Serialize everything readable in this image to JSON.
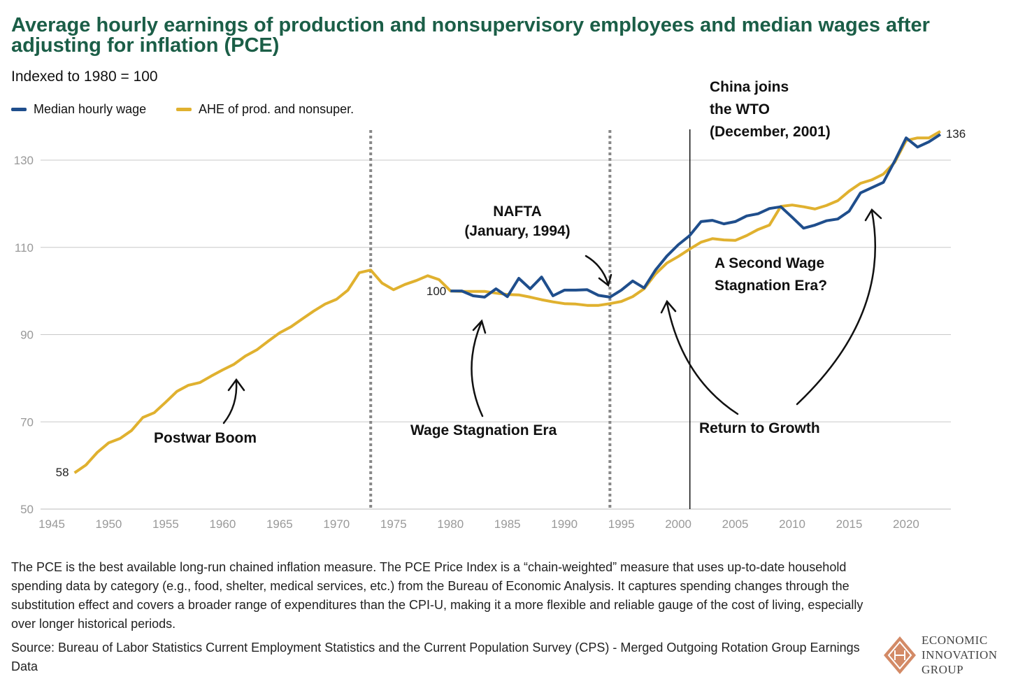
{
  "title": "Average hourly earnings of production and nonsupervisory employees and median wages after adjusting for inflation (PCE)",
  "subtitle": "Indexed to 1980 = 100",
  "colors": {
    "title": "#1b5e47",
    "median": "#1f4e8c",
    "ahe": "#e0b12f",
    "grid": "#c8c8c8",
    "logo": "#d38a66"
  },
  "chart_data": {
    "type": "line",
    "title": "Average hourly earnings of production and nonsupervisory employees and median wages after adjusting for inflation (PCE)",
    "subtitle": "Indexed to 1980 = 100",
    "xlabel": "",
    "ylabel": "",
    "xlim": [
      1945,
      2024
    ],
    "ylim": [
      50,
      136
    ],
    "x_ticks": [
      "1945",
      "1950",
      "1955",
      "1960",
      "1965",
      "1970",
      "1975",
      "1980",
      "1985",
      "1990",
      "1995",
      "2000",
      "2005",
      "2010",
      "2015",
      "2020"
    ],
    "y_ticks": [
      "50",
      "70",
      "90",
      "110",
      "130"
    ],
    "grid": "horizontal",
    "legend": {
      "placement": "top-left",
      "entries": [
        "Median hourly wage",
        "AHE of prod. and nonsuper."
      ]
    },
    "series": [
      {
        "name": "Median hourly wage",
        "color": "#1f4e8c",
        "x_start": 1980,
        "values": [
          100,
          100,
          98.9,
          98.6,
          100.5,
          98.7,
          102.9,
          100.5,
          103.2,
          98.9,
          100.2,
          100.2,
          100.3,
          99,
          98.6,
          100.2,
          102.3,
          100.7,
          104.8,
          108,
          110.6,
          112.7,
          115.9,
          116.2,
          115.4,
          115.9,
          117.2,
          117.7,
          118.9,
          119.3,
          116.9,
          114.4,
          115.1,
          116.1,
          116.5,
          118.3,
          122.5,
          123.7,
          124.9,
          129.8,
          135.1,
          133,
          134.2,
          135.9
        ]
      },
      {
        "name": "AHE of prod. and nonsuper.",
        "color": "#e0b12f",
        "x_start": 1947,
        "values": [
          58.3,
          60.1,
          63,
          65.2,
          66.2,
          68,
          71,
          72.1,
          74.5,
          77,
          78.4,
          79,
          80.5,
          81.9,
          83.2,
          85.1,
          86.5,
          88.5,
          90.4,
          91.8,
          93.6,
          95.4,
          97,
          98.1,
          100.2,
          104.2,
          104.8,
          101.8,
          100.3,
          101.5,
          102.4,
          103.5,
          102.6,
          100,
          99.9,
          99.9,
          99.9,
          99.5,
          99.2,
          99.1,
          98.6,
          98,
          97.5,
          97.1,
          97,
          96.7,
          96.7,
          97.1,
          97.6,
          98.7,
          100.5,
          103.9,
          106.4,
          107.9,
          109.6,
          111.2,
          112,
          111.7,
          111.6,
          112.7,
          114.1,
          115.1,
          119.4,
          119.7,
          119.3,
          118.8,
          119.6,
          120.7,
          122.9,
          124.7,
          125.5,
          126.8,
          129.5,
          134.5,
          135.1,
          135.1,
          136.6
        ]
      }
    ],
    "data_labels": {
      "start": "58",
      "index": "100",
      "end": "136"
    },
    "reference_lines": [
      {
        "year": 1973,
        "style": "dotted"
      },
      {
        "year": 1994,
        "style": "dotted"
      },
      {
        "year": 2002,
        "style": "solid"
      }
    ],
    "annotations": {
      "postwar": "Postwar Boom",
      "stagnation": "Wage Stagnation Era",
      "nafta_1": "NAFTA",
      "nafta_2": "(January, 1994)",
      "china_1": "China joins",
      "china_2": "the WTO",
      "china_3": "(December, 2001)",
      "second_1": "A Second Wage",
      "second_2": "Stagnation Era?",
      "growth": "Return to Growth"
    }
  },
  "note": "The PCE is the best available long-run chained inflation measure. The PCE Price Index is a “chain-weighted” measure that uses up-to-date household spending data by category (e.g., food, shelter, medical services, etc.) from the Bureau of Economic Analysis. It captures spending changes through the substitution effect and covers a broader range of expenditures than the CPI-U, making it a more flexible and reliable gauge of the cost of living, especially over longer historical periods.",
  "source": "Source: Bureau of Labor Statistics Current Employment Statistics and the Current Population Survey (CPS) - Merged Outgoing Rotation Group Earnings Data",
  "logo": {
    "line1": "ECONOMIC",
    "line2": "INNOVATION",
    "line3": "GROUP"
  }
}
